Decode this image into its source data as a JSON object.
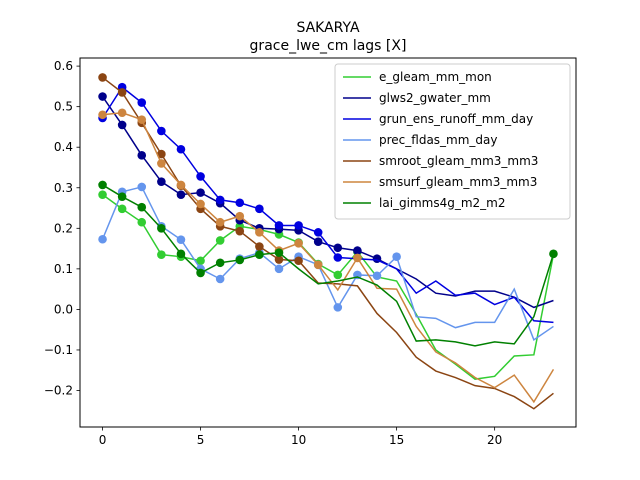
{
  "chart_data": {
    "type": "line",
    "title": "SAKARYA",
    "subtitle": "grace_lwe_cm lags [X]",
    "xlabel": "",
    "ylabel": "",
    "xlim": [
      -1.15,
      24.15
    ],
    "ylim": [
      -0.29,
      0.62
    ],
    "xticks": [
      0,
      5,
      10,
      15,
      20
    ],
    "yticks": [
      -0.2,
      -0.1,
      0.0,
      0.1,
      0.2,
      0.3,
      0.4,
      0.5,
      0.6
    ],
    "grid": false,
    "legend_position": "top-right",
    "x": [
      0,
      1,
      2,
      3,
      4,
      5,
      6,
      7,
      8,
      9,
      10,
      11,
      12,
      13,
      14,
      15,
      16,
      17,
      18,
      19,
      20,
      21,
      22,
      23
    ],
    "series": [
      {
        "name": "e_gleam_mm_mon",
        "color": "#32cd32",
        "values": [
          0.283,
          0.248,
          0.215,
          0.135,
          0.13,
          0.12,
          0.17,
          0.205,
          0.197,
          0.185,
          0.165,
          0.112,
          0.085,
          0.142,
          0.08,
          0.07,
          -0.012,
          -0.1,
          -0.135,
          -0.172,
          -0.165,
          -0.115,
          -0.112,
          0.135
        ],
        "markers": [
          0,
          1,
          2,
          3,
          4,
          5,
          6,
          7,
          8,
          9,
          10,
          11,
          12,
          13
        ]
      },
      {
        "name": "glws2_gwater_mm",
        "color": "#00008b",
        "values": [
          0.525,
          0.455,
          0.38,
          0.315,
          0.283,
          0.288,
          0.262,
          0.22,
          0.2,
          0.198,
          0.195,
          0.167,
          0.152,
          0.145,
          0.125,
          0.1,
          0.075,
          0.04,
          0.033,
          0.045,
          0.045,
          0.03,
          0.005,
          0.022
        ],
        "markers": [
          0,
          1,
          2,
          3,
          4,
          5,
          6,
          7,
          8,
          9,
          10,
          11,
          12,
          13,
          14
        ]
      },
      {
        "name": "grun_ens_runoff_mm_day",
        "color": "#0000e0",
        "values": [
          0.472,
          0.548,
          0.51,
          0.44,
          0.395,
          0.328,
          0.27,
          0.263,
          0.248,
          0.207,
          0.207,
          0.19,
          0.128,
          0.125,
          0.122,
          0.1,
          0.04,
          0.07,
          0.035,
          0.04,
          0.012,
          0.03,
          -0.028,
          -0.032
        ],
        "markers": [
          0,
          1,
          2,
          3,
          4,
          5,
          6,
          7,
          8,
          9,
          10,
          11,
          12
        ]
      },
      {
        "name": "prec_fldas_mm_day",
        "color": "#6495ed",
        "values": [
          0.173,
          0.29,
          0.302,
          0.205,
          0.172,
          0.1,
          0.075,
          0.125,
          0.14,
          0.1,
          0.13,
          0.11,
          0.005,
          0.085,
          0.083,
          0.13,
          -0.018,
          -0.022,
          -0.045,
          -0.032,
          -0.032,
          0.05,
          -0.075,
          -0.042
        ],
        "markers": [
          0,
          1,
          2,
          3,
          4,
          5,
          6,
          7,
          8,
          9,
          10,
          11,
          12,
          13,
          14,
          15
        ]
      },
      {
        "name": "smroot_gleam_mm3_mm3",
        "color": "#8b4513",
        "values": [
          0.572,
          0.535,
          0.46,
          0.383,
          0.305,
          0.248,
          0.205,
          0.193,
          0.155,
          0.123,
          0.12,
          0.065,
          0.063,
          0.058,
          -0.01,
          -0.057,
          -0.118,
          -0.152,
          -0.168,
          -0.188,
          -0.195,
          -0.215,
          -0.245,
          -0.207
        ],
        "markers": [
          0,
          1,
          2,
          3,
          4,
          5,
          6,
          7,
          8,
          9,
          10
        ]
      },
      {
        "name": "smsurf_gleam_mm3_mm3",
        "color": "#cd853f",
        "values": [
          0.48,
          0.485,
          0.468,
          0.36,
          0.307,
          0.26,
          0.215,
          0.23,
          0.19,
          0.145,
          0.163,
          0.11,
          0.048,
          0.127,
          0.052,
          0.05,
          -0.042,
          -0.105,
          -0.132,
          -0.168,
          -0.193,
          -0.162,
          -0.228,
          -0.148
        ],
        "markers": [
          0,
          1,
          2,
          3,
          4,
          5,
          6,
          7,
          8,
          9,
          10,
          11,
          13
        ]
      },
      {
        "name": "lai_gimms4g_m2_m2",
        "color": "#008000",
        "values": [
          0.307,
          0.278,
          0.252,
          0.2,
          0.137,
          0.09,
          0.115,
          0.122,
          0.135,
          0.14,
          0.1,
          0.063,
          0.07,
          0.08,
          0.06,
          0.02,
          -0.078,
          -0.075,
          -0.08,
          -0.09,
          -0.08,
          -0.085,
          -0.018,
          0.137
        ],
        "markers": [
          0,
          1,
          2,
          3,
          4,
          5,
          6,
          7,
          8,
          9,
          23
        ]
      }
    ]
  }
}
